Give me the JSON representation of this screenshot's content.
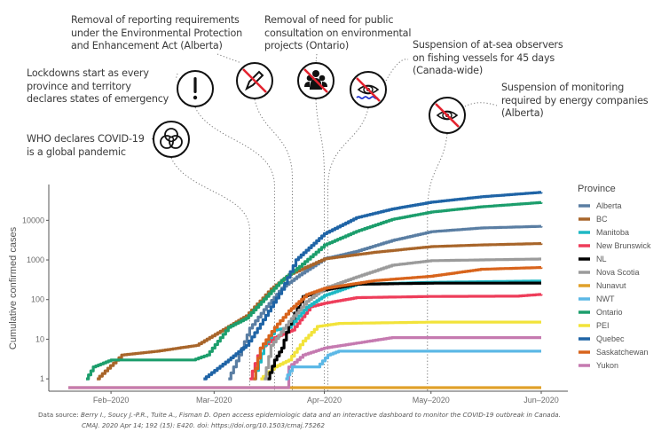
{
  "annotations": [
    {
      "id": "who",
      "text": "WHO declares COVID-19\nis a global pandemic",
      "date": "2020-03-11",
      "icon": "biohazard-icon"
    },
    {
      "id": "lockdowns",
      "text": "Lockdowns start as every\nprovince and territory\ndeclares states of emergency",
      "date": "2020-03-18",
      "icon": "exclamation-icon"
    },
    {
      "id": "epea",
      "text": "Removal of reporting requirements\nunder the Environmental Protection\nand Enhancement Act (Alberta)",
      "date": "2020-03-23",
      "icon": "no-pencil-icon"
    },
    {
      "id": "consultation",
      "text": "Removal of need for public\nconsultation on environmental\nprojects (Ontario)",
      "date": "2020-04-01",
      "icon": "no-people-icon"
    },
    {
      "id": "observers",
      "text": "Suspension of at-sea observers\non fishing vessels for 45 days\n(Canada-wide)",
      "date": "2020-04-02",
      "icon": "no-eye-water-icon"
    },
    {
      "id": "monitoring",
      "text": "Suspension of monitoring\nrequired by energy companies\n(Alberta)",
      "date": "2020-04-30",
      "icon": "no-eye-icon"
    }
  ],
  "source": {
    "label": "Data source: ",
    "line1": "Berry I., Soucy J.-P.R., Tuite A., Fisman D. Open access epidemiologic data and an interactive dashboard to monitor the COVID-19 outbreak in Canada.",
    "line2": "CMAJ. 2020 Apr 14; 192 (15): E420. doi: https://doi.org/10.1503/cmaj.75262"
  },
  "chart_data": {
    "type": "line",
    "title": "",
    "xlabel": "",
    "ylabel": "Cumulative confirmed cases",
    "yscale": "log10",
    "ylim": [
      0.6,
      80000
    ],
    "xlim": [
      "2020-01-20",
      "2020-06-01"
    ],
    "x_ticks": [
      {
        "date": "2020-02-01",
        "label": "Feb–2020"
      },
      {
        "date": "2020-03-01",
        "label": "Mar–2020"
      },
      {
        "date": "2020-04-01",
        "label": "Apr–2020"
      },
      {
        "date": "2020-05-01",
        "label": "May–2020"
      },
      {
        "date": "2020-06-01",
        "label": "Jun–2020"
      }
    ],
    "y_ticks": [
      1,
      10,
      100,
      1000,
      10000
    ],
    "grid": false,
    "legend": {
      "title": "Province",
      "position": "right"
    },
    "series": [
      {
        "name": "Alberta",
        "color": "#5a7ea3",
        "points": [
          [
            "2020-03-05",
            1
          ],
          [
            "2020-03-08",
            4
          ],
          [
            "2020-03-11",
            19
          ],
          [
            "2020-03-15",
            56
          ],
          [
            "2020-03-20",
            195
          ],
          [
            "2020-03-25",
            419
          ],
          [
            "2020-04-01",
            1075
          ],
          [
            "2020-04-10",
            1651
          ],
          [
            "2020-04-20",
            3095
          ],
          [
            "2020-05-01",
            5165
          ],
          [
            "2020-05-15",
            6407
          ],
          [
            "2020-06-01",
            7057
          ]
        ]
      },
      {
        "name": "BC",
        "color": "#a8652a",
        "points": [
          [
            "2020-01-28",
            1
          ],
          [
            "2020-02-04",
            4
          ],
          [
            "2020-02-14",
            5
          ],
          [
            "2020-02-25",
            7
          ],
          [
            "2020-03-05",
            21
          ],
          [
            "2020-03-10",
            39
          ],
          [
            "2020-03-17",
            186
          ],
          [
            "2020-03-22",
            424
          ],
          [
            "2020-04-01",
            1066
          ],
          [
            "2020-04-15",
            1561
          ],
          [
            "2020-05-01",
            2171
          ],
          [
            "2020-05-15",
            2392
          ],
          [
            "2020-06-01",
            2597
          ]
        ]
      },
      {
        "name": "Manitoba",
        "color": "#1eb8c4",
        "points": [
          [
            "2020-03-12",
            1
          ],
          [
            "2020-03-15",
            7
          ],
          [
            "2020-03-18",
            17
          ],
          [
            "2020-03-22",
            20
          ],
          [
            "2020-03-27",
            64
          ],
          [
            "2020-04-01",
            127
          ],
          [
            "2020-04-10",
            242
          ],
          [
            "2020-05-01",
            273
          ],
          [
            "2020-06-01",
            294
          ]
        ]
      },
      {
        "name": "New Brunswick",
        "color": "#ee3d5a",
        "points": [
          [
            "2020-03-11",
            1
          ],
          [
            "2020-03-14",
            6
          ],
          [
            "2020-03-18",
            11
          ],
          [
            "2020-03-23",
            17
          ],
          [
            "2020-03-28",
            66
          ],
          [
            "2020-04-01",
            81
          ],
          [
            "2020-04-10",
            112
          ],
          [
            "2020-05-01",
            120
          ],
          [
            "2020-05-25",
            122
          ],
          [
            "2020-06-01",
            136
          ]
        ]
      },
      {
        "name": "NL",
        "color": "#000000",
        "points": [
          [
            "2020-03-16",
            1
          ],
          [
            "2020-03-18",
            3
          ],
          [
            "2020-03-20",
            6
          ],
          [
            "2020-03-22",
            24
          ],
          [
            "2020-03-26",
            120
          ],
          [
            "2020-04-01",
            175
          ],
          [
            "2020-04-10",
            244
          ],
          [
            "2020-05-01",
            259
          ],
          [
            "2020-06-01",
            261
          ]
        ]
      },
      {
        "name": "Nova Scotia",
        "color": "#9b9b9b",
        "points": [
          [
            "2020-03-15",
            1
          ],
          [
            "2020-03-17",
            7
          ],
          [
            "2020-03-22",
            28
          ],
          [
            "2020-03-27",
            90
          ],
          [
            "2020-04-01",
            193
          ],
          [
            "2020-04-10",
            373
          ],
          [
            "2020-04-20",
            737
          ],
          [
            "2020-05-01",
            959
          ],
          [
            "2020-06-01",
            1057
          ]
        ]
      },
      {
        "name": "Nunavut",
        "color": "#e0a12a",
        "points": [
          [
            "2020-01-20",
            0.6
          ],
          [
            "2020-06-01",
            0.6
          ]
        ]
      },
      {
        "name": "NWT",
        "color": "#5cb8e6",
        "points": [
          [
            "2020-03-21",
            1
          ],
          [
            "2020-03-23",
            2
          ],
          [
            "2020-03-30",
            2
          ],
          [
            "2020-04-02",
            4
          ],
          [
            "2020-04-05",
            5
          ],
          [
            "2020-06-01",
            5
          ]
        ]
      },
      {
        "name": "Ontario",
        "color": "#1c9e6c",
        "points": [
          [
            "2020-01-25",
            1
          ],
          [
            "2020-01-27",
            2
          ],
          [
            "2020-02-01",
            3
          ],
          [
            "2020-02-24",
            3
          ],
          [
            "2020-02-28",
            4
          ],
          [
            "2020-03-05",
            20
          ],
          [
            "2020-03-10",
            34
          ],
          [
            "2020-03-15",
            103
          ],
          [
            "2020-03-20",
            308
          ],
          [
            "2020-03-25",
            688
          ],
          [
            "2020-04-01",
            2392
          ],
          [
            "2020-04-10",
            5276
          ],
          [
            "2020-04-20",
            10578
          ],
          [
            "2020-05-01",
            16187
          ],
          [
            "2020-05-15",
            21922
          ],
          [
            "2020-06-01",
            28263
          ]
        ]
      },
      {
        "name": "PEI",
        "color": "#f2e33a",
        "points": [
          [
            "2020-03-14",
            1
          ],
          [
            "2020-03-18",
            2
          ],
          [
            "2020-03-22",
            3
          ],
          [
            "2020-03-26",
            9
          ],
          [
            "2020-03-30",
            21
          ],
          [
            "2020-04-05",
            25
          ],
          [
            "2020-05-01",
            27
          ],
          [
            "2020-06-01",
            27
          ]
        ]
      },
      {
        "name": "Quebec",
        "color": "#1f64a6",
        "points": [
          [
            "2020-02-27",
            1
          ],
          [
            "2020-03-05",
            3
          ],
          [
            "2020-03-10",
            7
          ],
          [
            "2020-03-14",
            24
          ],
          [
            "2020-03-20",
            181
          ],
          [
            "2020-03-24",
            1013
          ],
          [
            "2020-04-01",
            4611
          ],
          [
            "2020-04-10",
            11677
          ],
          [
            "2020-04-20",
            19319
          ],
          [
            "2020-05-01",
            28648
          ],
          [
            "2020-05-15",
            39225
          ],
          [
            "2020-06-01",
            51059
          ]
        ]
      },
      {
        "name": "Saskatchewan",
        "color": "#d8641c",
        "points": [
          [
            "2020-03-12",
            1
          ],
          [
            "2020-03-14",
            6
          ],
          [
            "2020-03-18",
            20
          ],
          [
            "2020-03-22",
            52
          ],
          [
            "2020-03-27",
            134
          ],
          [
            "2020-04-01",
            193
          ],
          [
            "2020-04-15",
            301
          ],
          [
            "2020-05-01",
            389
          ],
          [
            "2020-05-15",
            582
          ],
          [
            "2020-06-01",
            646
          ]
        ]
      },
      {
        "name": "Yukon",
        "color": "#c57ab0",
        "points": [
          [
            "2020-01-20",
            0.6
          ],
          [
            "2020-03-21",
            0.6
          ],
          [
            "2020-03-22",
            2
          ],
          [
            "2020-03-26",
            4
          ],
          [
            "2020-04-01",
            6
          ],
          [
            "2020-04-10",
            8
          ],
          [
            "2020-04-20",
            11
          ],
          [
            "2020-06-01",
            11
          ]
        ]
      }
    ]
  }
}
